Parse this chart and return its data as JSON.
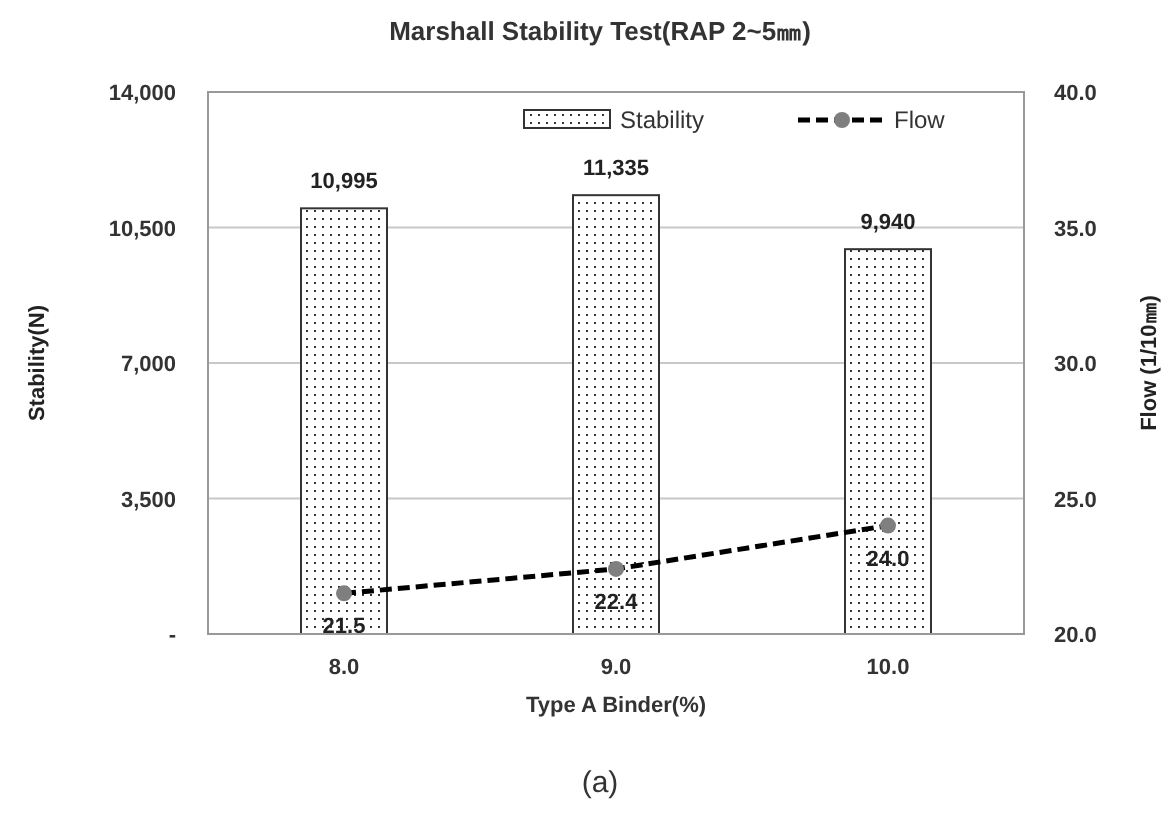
{
  "chart_data": {
    "type": "bar",
    "title": "Marshall Stability Test(RAP 2~5㎜)",
    "xlabel": "Type A Binder(%)",
    "ylabel": "Stability(N)",
    "y2label": "Flow  (1/10㎜)",
    "categories": [
      "8.0",
      "9.0",
      "10.0"
    ],
    "series": [
      {
        "name": "Stability",
        "color": "#333333",
        "values": [
          10995,
          11335,
          9940
        ],
        "value_labels": [
          "10,995",
          "11,335",
          "9,940"
        ]
      },
      {
        "name": "Flow",
        "type": "line",
        "axis": "y2",
        "color": "#000000",
        "values": [
          21.5,
          22.4,
          24.0
        ],
        "value_labels": [
          "21.5",
          "22.4",
          "24.0"
        ]
      }
    ],
    "ylim": [
      0,
      14000
    ],
    "yticks": [
      {
        "value": 0,
        "label": "-"
      },
      {
        "value": 3500,
        "label": "3,500"
      },
      {
        "value": 7000,
        "label": "7,000"
      },
      {
        "value": 10500,
        "label": "10,500"
      },
      {
        "value": 14000,
        "label": "14,000"
      }
    ],
    "y2lim": [
      20,
      40
    ],
    "y2ticks": [
      {
        "value": 20,
        "label": "20.0"
      },
      {
        "value": 25,
        "label": "25.0"
      },
      {
        "value": 30,
        "label": "30.0"
      },
      {
        "value": 35,
        "label": "35.0"
      },
      {
        "value": 40,
        "label": "40.0"
      }
    ],
    "grid": "y",
    "legend": "top right",
    "marker": "circle",
    "line_style": "dashed",
    "annotations": [
      "(a)"
    ]
  }
}
